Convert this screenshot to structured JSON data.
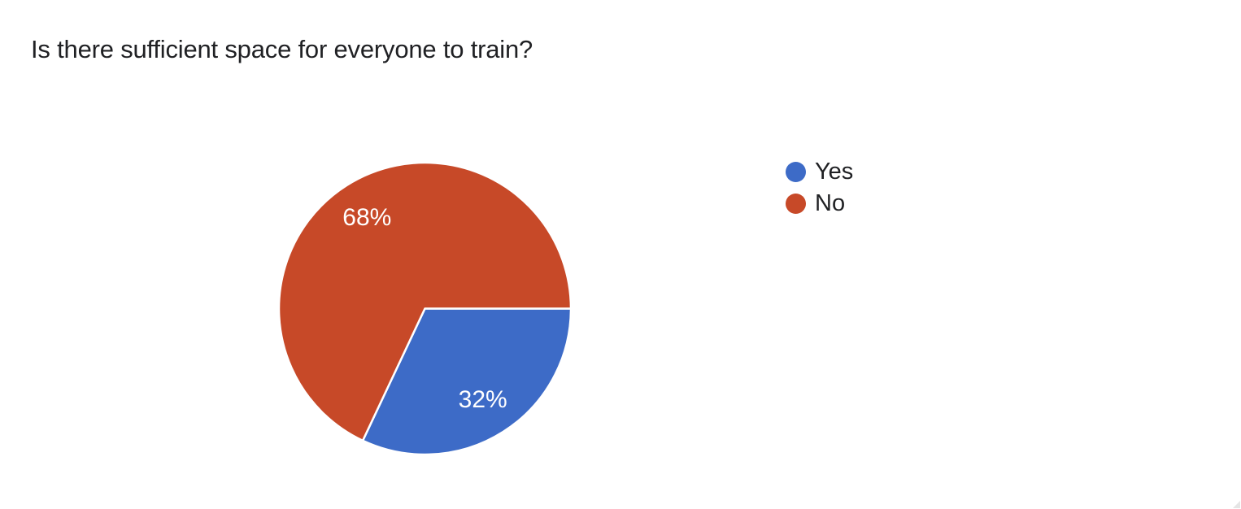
{
  "header": {
    "title": "Is there sufficient space for everyone to train?"
  },
  "chart_data": {
    "type": "pie",
    "title": "Is there sufficient space for everyone to train?",
    "categories": [
      "Yes",
      "No"
    ],
    "values": [
      32,
      68
    ],
    "unit": "percent",
    "slice_labels": [
      "32%",
      "68%"
    ],
    "colors": [
      "#3d6bc7",
      "#c74928"
    ],
    "slice_label_color": "#ffffff",
    "slice_border_color": "#ffffff",
    "start_angle_deg_clockwise_from_3oclock": 0,
    "direction": "clockwise",
    "label_radius_fraction": 0.74,
    "legend_position": "right",
    "background": "#ffffff"
  },
  "legend": {
    "items": [
      {
        "label": "Yes",
        "color": "#3d6bc7"
      },
      {
        "label": "No",
        "color": "#c74928"
      }
    ]
  },
  "icons": {
    "resize_grip": "corner-triangle"
  }
}
